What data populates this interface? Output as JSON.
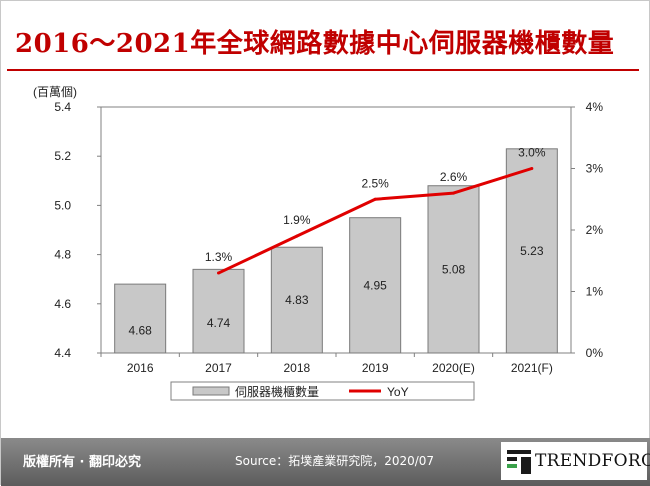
{
  "header": {
    "title": "2016～2021年全球網路數據中心伺服器機櫃數量"
  },
  "footer": {
    "rights": "版權所有 · 翻印必究",
    "source": "Source：拓墣產業研究院，2020/07",
    "logo_text": "TRENDFORCE"
  },
  "colors": {
    "title": "#c00000",
    "bar": "#c8c8c8",
    "line": "#e00000",
    "footer": "#6e6e6e"
  },
  "chart_data": {
    "type": "bar",
    "categories": [
      "2016",
      "2017",
      "2018",
      "2019",
      "2020(E)",
      "2021(F)"
    ],
    "ylabel": "(百萬個)",
    "ylim": [
      4.4,
      5.4
    ],
    "yticks": [
      "5.4",
      "5.2",
      "5.0",
      "4.8",
      "4.6",
      "4.4"
    ],
    "y2lim": [
      0,
      4
    ],
    "y2ticks": [
      "4%",
      "3%",
      "2%",
      "1%",
      "0%"
    ],
    "grid": false,
    "legend_position": "bottom",
    "series": [
      {
        "name": "伺服器機櫃數量",
        "type": "bar",
        "axis": "left",
        "values": [
          4.68,
          4.74,
          4.83,
          4.95,
          5.08,
          5.23
        ],
        "labels": [
          "4.68",
          "4.74",
          "4.83",
          "4.95",
          "5.08",
          "5.23"
        ]
      },
      {
        "name": "YoY",
        "type": "line",
        "axis": "right",
        "values": [
          null,
          1.3,
          1.9,
          2.5,
          2.6,
          3.0
        ],
        "labels": [
          "",
          "1.3%",
          "1.9%",
          "2.5%",
          "2.6%",
          "3.0%"
        ]
      }
    ]
  }
}
